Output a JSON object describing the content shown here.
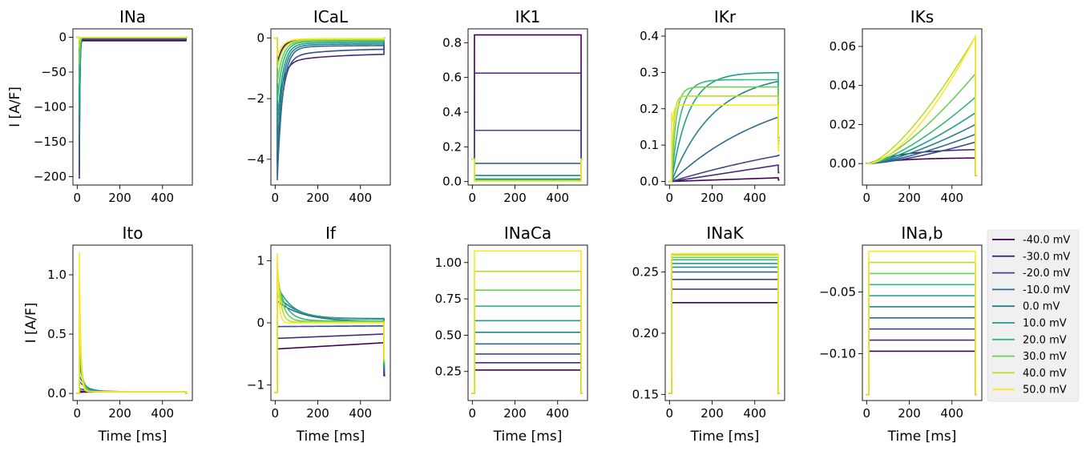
{
  "colors": [
    "#440154",
    "#482878",
    "#3e4989",
    "#31688e",
    "#26828e",
    "#1f9e89",
    "#35b779",
    "#6ece58",
    "#b5de2b",
    "#fde725"
  ],
  "legend": {
    "placement": "right",
    "entries": [
      "-40.0 mV",
      "-30.0 mV",
      "-20.0 mV",
      "-10.0 mV",
      "0.0 mV",
      "10.0 mV",
      "20.0 mV",
      "30.0 mV",
      "40.0 mV",
      "50.0 mV"
    ]
  },
  "chart_data": [
    {
      "type": "line",
      "title": "INa",
      "ylabel": "I [A/F]",
      "xlabel": "",
      "xlim": [
        -20,
        540
      ],
      "ylim": [
        -212,
        12
      ],
      "xticks": [
        0,
        200,
        400
      ],
      "yticks": [
        0,
        -50,
        -100,
        -150,
        -200
      ],
      "ytick_labels": [
        "0",
        "−50",
        "−100",
        "−150",
        "−200"
      ],
      "kind": "ina",
      "peak": [
        -5,
        -203,
        -200,
        -175,
        -140,
        -110,
        -70,
        -40,
        -15,
        -4
      ],
      "late": [
        -5,
        -3,
        -2,
        -1.5,
        -1,
        -0.8,
        -0.6,
        -0.4,
        -0.3,
        -0.2
      ]
    },
    {
      "type": "line",
      "title": "ICaL",
      "ylabel": "",
      "xlabel": "",
      "xlim": [
        -20,
        540
      ],
      "ylim": [
        -4.85,
        0.3
      ],
      "xticks": [
        0,
        200,
        400
      ],
      "yticks": [
        0,
        -2,
        -4
      ],
      "ytick_labels": [
        "0",
        "−2",
        "−4"
      ],
      "kind": "ical",
      "peak": [
        -0.85,
        -2.5,
        -3.9,
        -4.6,
        -3.6,
        -2.8,
        -2.0,
        -1.4,
        -0.9,
        -0.5
      ],
      "late": [
        -0.05,
        -0.5,
        -0.35,
        -0.25,
        -0.2,
        -0.15,
        -0.1,
        -0.07,
        -0.05,
        -0.02
      ],
      "tau_slow": [
        300,
        250,
        200,
        150,
        120,
        100,
        90,
        80,
        70,
        60
      ]
    },
    {
      "type": "line",
      "title": "IK1",
      "ylabel": "",
      "xlabel": "",
      "xlim": [
        -20,
        540
      ],
      "ylim": [
        -0.02,
        0.88
      ],
      "xticks": [
        0,
        200,
        400
      ],
      "yticks": [
        0,
        0.2,
        0.4,
        0.6,
        0.8
      ],
      "ytick_labels": [
        "0.0",
        "0.2",
        "0.4",
        "0.6",
        "0.8"
      ],
      "kind": "step",
      "level": [
        0.845,
        0.625,
        0.295,
        0.105,
        0.035,
        0.015,
        0.008,
        0.005,
        0.003,
        0.002
      ],
      "hold": 0.13
    },
    {
      "type": "line",
      "title": "IKr",
      "ylabel": "",
      "xlabel": "",
      "xlim": [
        -20,
        540
      ],
      "ylim": [
        -0.01,
        0.42
      ],
      "xticks": [
        0,
        200,
        400
      ],
      "yticks": [
        0,
        0.1,
        0.2,
        0.3,
        0.4
      ],
      "ytick_labels": [
        "0.0",
        "0.1",
        "0.2",
        "0.3",
        "0.4"
      ],
      "kind": "ikr",
      "amp": [
        0.01,
        0.06,
        0.18,
        0.28,
        0.3,
        0.3,
        0.28,
        0.26,
        0.235,
        0.21
      ],
      "tau": [
        2000,
        1500,
        1000,
        500,
        200,
        80,
        40,
        20,
        10,
        5
      ]
    },
    {
      "type": "line",
      "title": "IKs",
      "ylabel": "",
      "xlabel": "",
      "xlim": [
        -20,
        540
      ],
      "ylim": [
        -0.011,
        0.069
      ],
      "xticks": [
        0,
        200,
        400
      ],
      "yticks": [
        0,
        0.02,
        0.04,
        0.06
      ],
      "ytick_labels": [
        "0.00",
        "0.02",
        "0.04",
        "0.06"
      ],
      "kind": "iks",
      "end": [
        0.003,
        0.0075,
        0.011,
        0.015,
        0.02,
        0.026,
        0.034,
        0.046,
        0.065,
        0.065
      ],
      "mode": [
        0,
        0,
        1,
        1,
        1,
        1,
        1,
        1,
        1,
        2
      ]
    },
    {
      "type": "line",
      "title": "Ito",
      "ylabel": "I [A/F]",
      "xlabel": "Time [ms]",
      "xlim": [
        -20,
        540
      ],
      "ylim": [
        -0.06,
        1.25
      ],
      "xticks": [
        0,
        200,
        400
      ],
      "yticks": [
        0,
        0.5,
        1.0
      ],
      "ytick_labels": [
        "0.0",
        "0.5",
        "1.0"
      ],
      "kind": "ito",
      "peak": [
        0.01,
        0.02,
        0.04,
        0.1,
        0.15,
        0.25,
        0.35,
        0.6,
        0.9,
        1.19
      ],
      "tau": [
        100,
        80,
        60,
        40,
        30,
        20,
        15,
        10,
        8,
        6
      ]
    },
    {
      "type": "line",
      "title": "If",
      "ylabel": "",
      "xlabel": "Time [ms]",
      "xlim": [
        -20,
        540
      ],
      "ylim": [
        -1.25,
        1.25
      ],
      "xticks": [
        0,
        200,
        400
      ],
      "yticks": [
        1,
        0,
        -1
      ],
      "ytick_labels": [
        "1",
        "0",
        "−1"
      ],
      "kind": "if",
      "start": [
        -0.42,
        -0.25,
        -0.06,
        0.35,
        0.45,
        0.6,
        0.7,
        0.85,
        1.0,
        1.12
      ],
      "end": [
        -0.32,
        -0.18,
        -0.05,
        0.02,
        0.06,
        0.07,
        0.03,
        0.02,
        0.01,
        0.0
      ],
      "tau": [
        1000,
        1000,
        1000,
        120,
        90,
        70,
        40,
        25,
        15,
        8
      ]
    },
    {
      "type": "line",
      "title": "INaCa",
      "ylabel": "",
      "xlabel": "Time [ms]",
      "xlim": [
        -20,
        540
      ],
      "ylim": [
        0.05,
        1.12
      ],
      "xticks": [
        0,
        200,
        400
      ],
      "yticks": [
        0.25,
        0.5,
        0.75,
        1.0
      ],
      "ytick_labels": [
        "0.25",
        "0.50",
        "0.75",
        "1.00"
      ],
      "kind": "step",
      "level": [
        0.26,
        0.31,
        0.37,
        0.44,
        0.52,
        0.6,
        0.7,
        0.81,
        0.94,
        1.08
      ],
      "hold": 0.1
    },
    {
      "type": "line",
      "title": "INaK",
      "ylabel": "",
      "xlabel": "Time [ms]",
      "xlim": [
        -20,
        540
      ],
      "ylim": [
        0.145,
        0.272
      ],
      "xticks": [
        0,
        200,
        400
      ],
      "yticks": [
        0.15,
        0.2,
        0.25
      ],
      "ytick_labels": [
        "0.15",
        "0.20",
        "0.25"
      ],
      "kind": "step",
      "level": [
        0.225,
        0.236,
        0.244,
        0.25,
        0.254,
        0.257,
        0.26,
        0.262,
        0.264,
        0.265
      ],
      "hold": 0.151
    },
    {
      "type": "line",
      "title": "INa,b",
      "ylabel": "",
      "xlabel": "Time [ms]",
      "xlim": [
        -20,
        540
      ],
      "ylim": [
        -0.138,
        -0.012
      ],
      "xticks": [
        0,
        200,
        400
      ],
      "yticks": [
        -0.05,
        -0.1
      ],
      "ytick_labels": [
        "−0.05",
        "−0.10"
      ],
      "kind": "step",
      "level": [
        -0.098,
        -0.089,
        -0.08,
        -0.071,
        -0.062,
        -0.053,
        -0.044,
        -0.035,
        -0.026,
        -0.017
      ],
      "hold": -0.133
    }
  ]
}
